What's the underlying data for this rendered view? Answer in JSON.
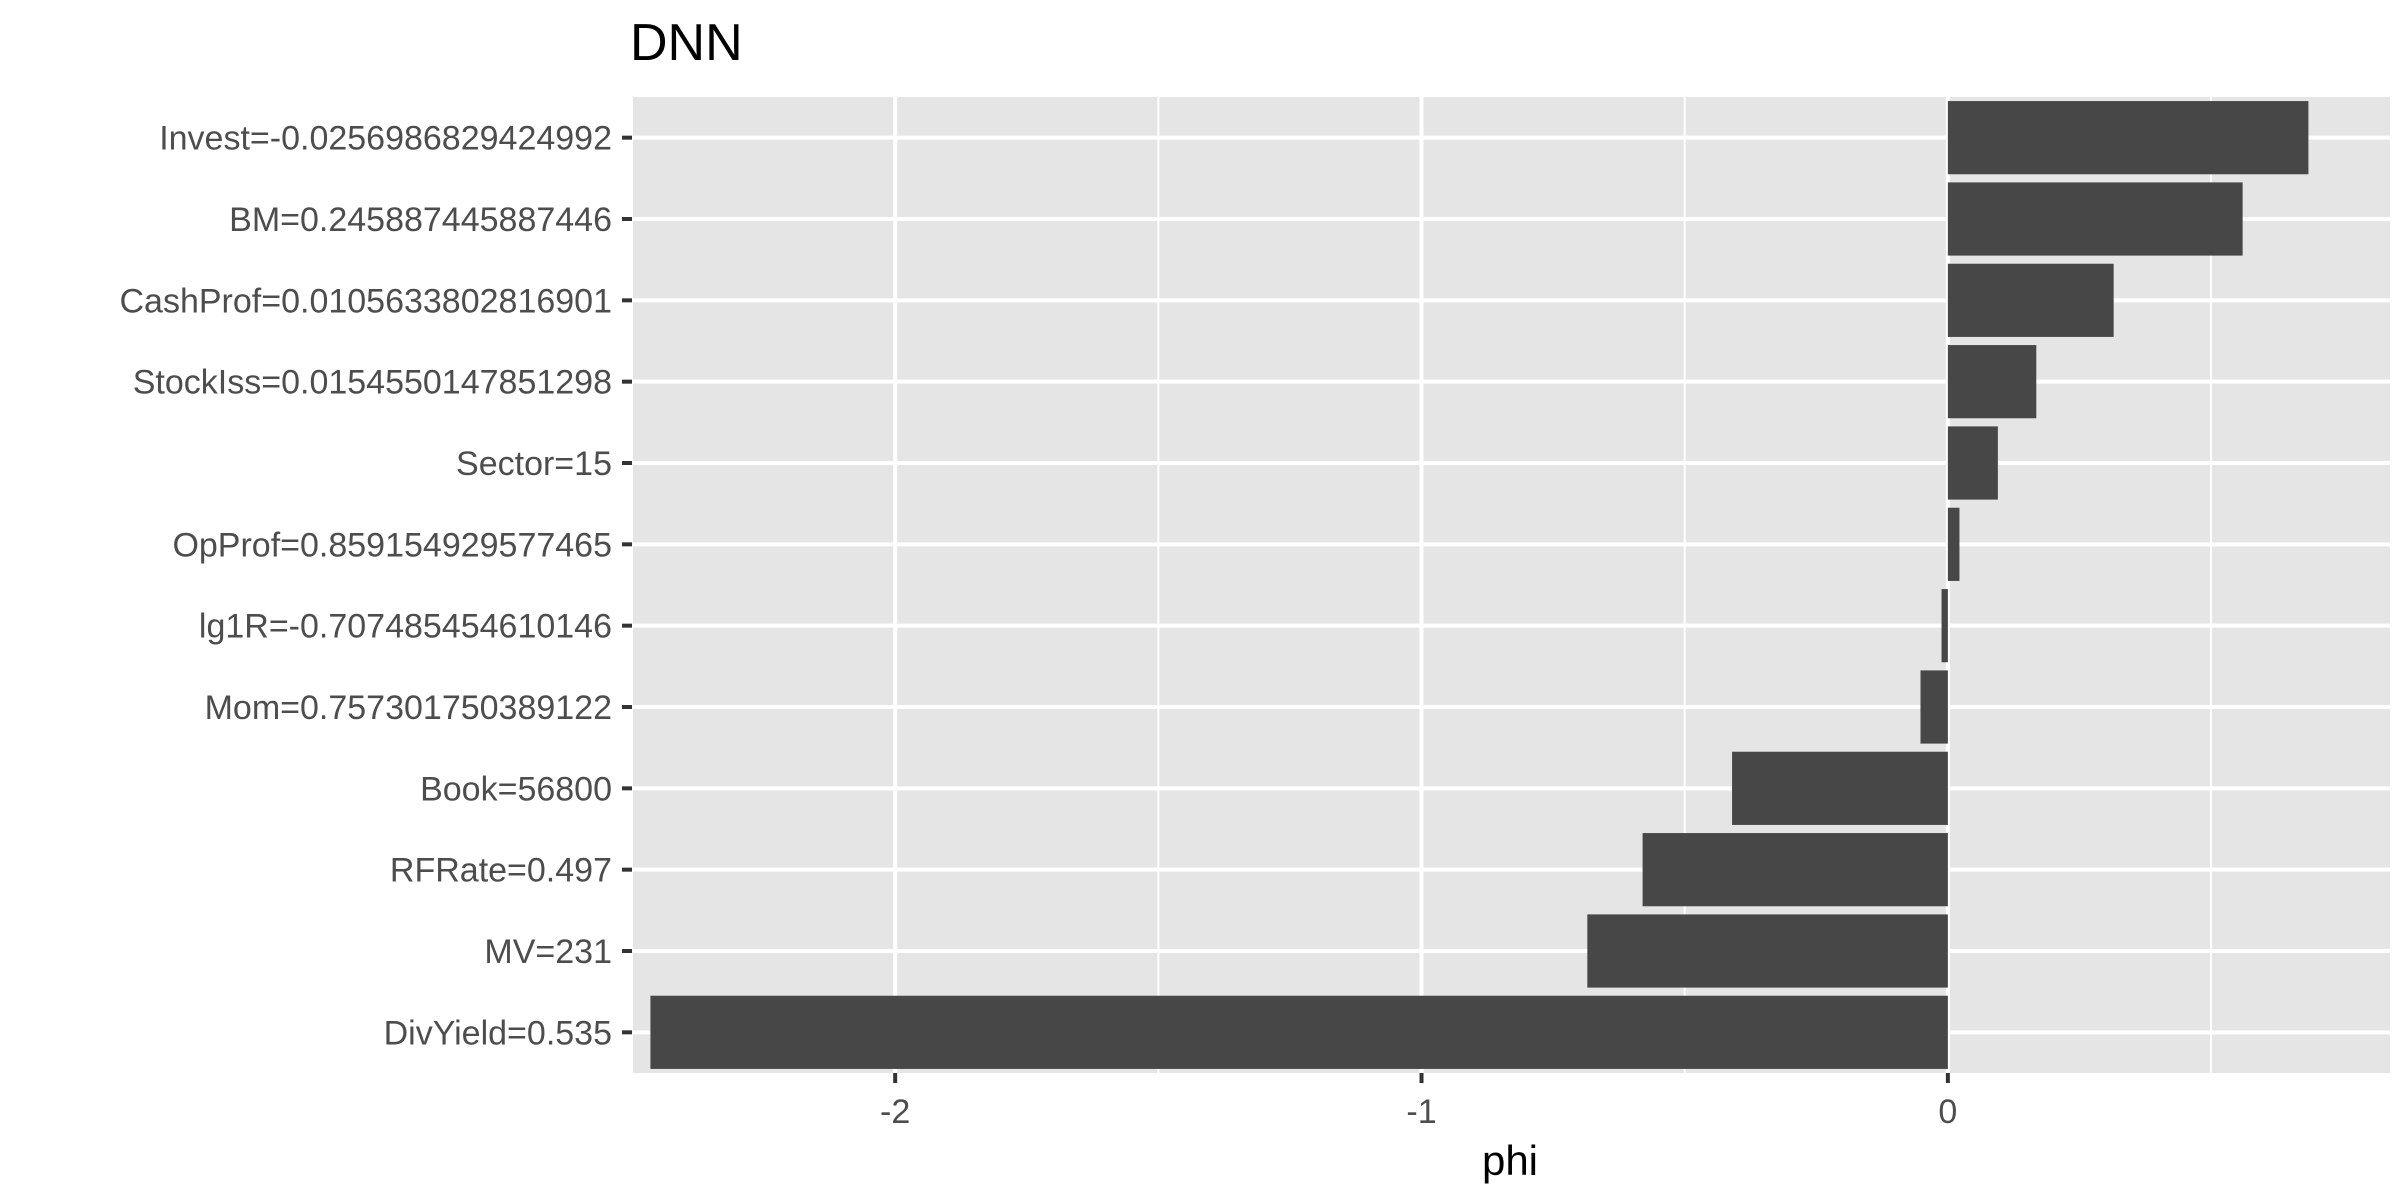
{
  "chart_data": {
    "type": "bar",
    "orientation": "horizontal",
    "title": "DNN",
    "xlabel": "phi",
    "ylabel": "",
    "xlim": [
      -2.5,
      0.84
    ],
    "xticks": [
      -2,
      -1,
      0
    ],
    "xtick_labels": [
      "-2",
      "-1",
      "0"
    ],
    "grid": true,
    "categories": [
      "Invest=-0.0256986829424992",
      "BM=0.245887445887446",
      "CashProf=0.0105633802816901",
      "StockIss=0.0154550147851298",
      "Sector=15",
      "OpProf=0.859154929577465",
      "lg1R=-0.707485454610146",
      "Mom=0.757301750389122",
      "Book=56800",
      "RFRate=0.497",
      "MV=231",
      "DivYield=0.535"
    ],
    "values": [
      0.685,
      0.56,
      0.315,
      0.168,
      0.095,
      0.022,
      -0.012,
      -0.052,
      -0.41,
      -0.58,
      -0.685,
      -2.465
    ],
    "colors": {
      "bar": "#474747",
      "panel": "#e5e5e5",
      "grid": "#ffffff",
      "tick": "#333333"
    }
  }
}
